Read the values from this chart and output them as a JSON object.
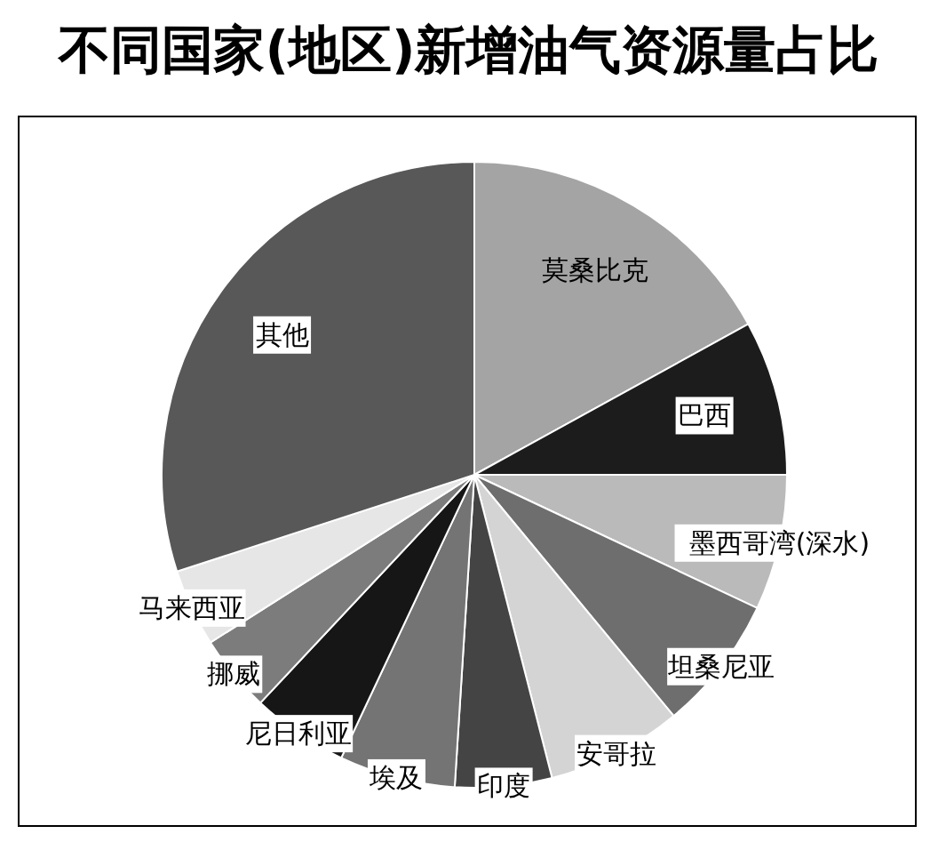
{
  "chart_data": {
    "type": "pie",
    "title": "不同国家(地区)新增油气资源量占比",
    "categories": [
      "莫桑比克",
      "巴西",
      "墨西哥湾(深水)",
      "坦桑尼亚",
      "安哥拉",
      "印度",
      "埃及",
      "尼日利亚",
      "挪威",
      "马来西亚",
      "其他"
    ],
    "values": [
      17,
      8,
      7,
      7,
      7,
      5,
      6,
      5,
      4,
      4,
      30
    ],
    "colors": [
      "#a4a4a4",
      "#1c1c1c",
      "#bababa",
      "#6e6e6e",
      "#d4d4d4",
      "#444444",
      "#747474",
      "#161616",
      "#7c7c7c",
      "#e6e6e6",
      "#585858"
    ]
  }
}
